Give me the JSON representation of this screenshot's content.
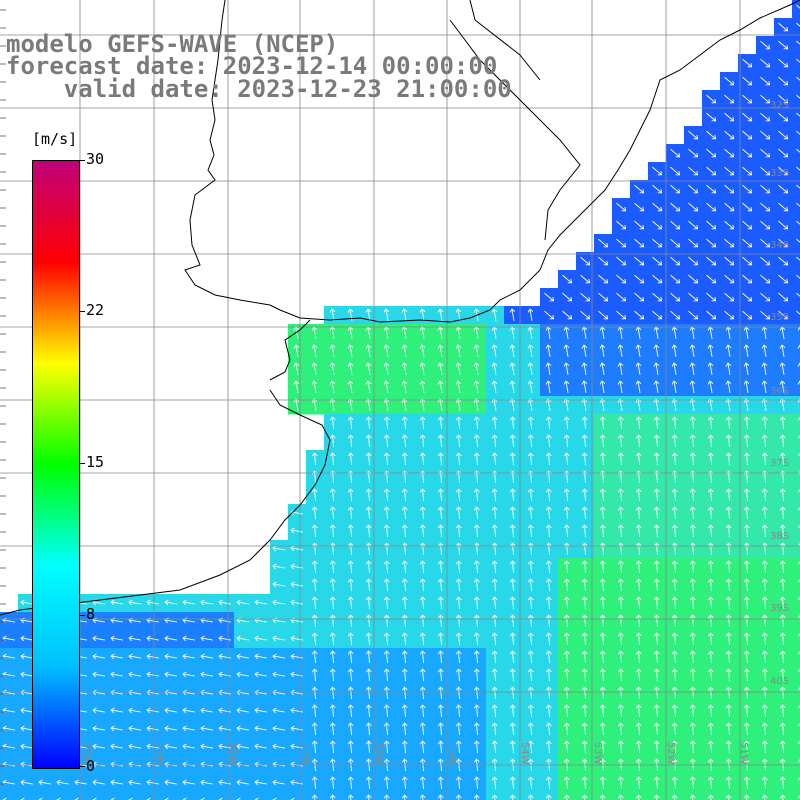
{
  "title": {
    "line1": "modelo GEFS-WAVE (NCEP)",
    "line2": "forecast date: 2023-12-14 00:00:00",
    "line3": "    valid date: 2023-12-23 21:00:00"
  },
  "colorbar": {
    "units": "[m/s]",
    "ticks": [
      "30",
      "22",
      "15",
      "8",
      "0"
    ],
    "colors": [
      "#0000ff",
      "#00bfff",
      "#00ffff",
      "#00ff00",
      "#ffff00",
      "#ff0000",
      "#c0007a"
    ]
  },
  "lat_labels": [
    "32S",
    "33S",
    "34S",
    "35S",
    "36S",
    "37S",
    "38S",
    "39S",
    "40S"
  ],
  "lon_labels": [
    "60W",
    "59W",
    "58W",
    "57W",
    "56W",
    "55W",
    "54W",
    "53W",
    "52W",
    "51W"
  ],
  "colors": {
    "land": "#ffffff",
    "coast": "#000000",
    "grid": "#888888",
    "arrow": "#ffffff"
  }
}
